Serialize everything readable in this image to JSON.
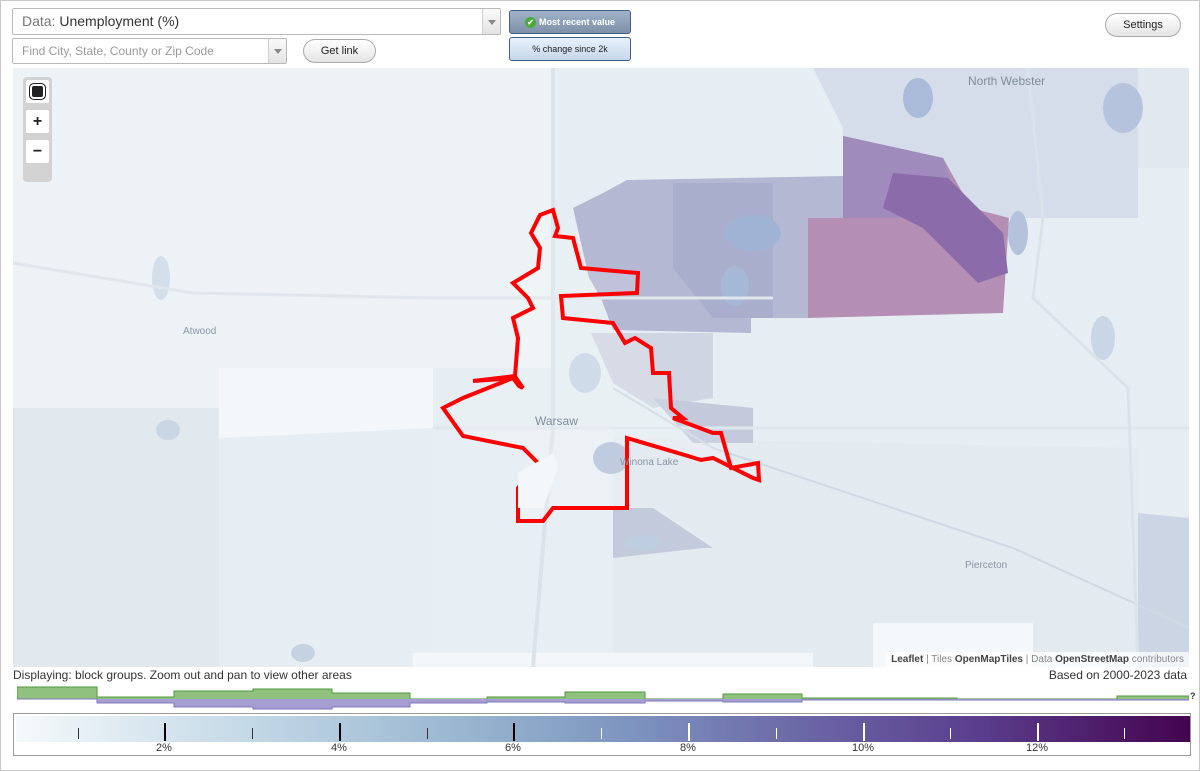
{
  "controls": {
    "data_label": "Data:",
    "data_value": "Unemployment (%)",
    "search_placeholder": "Find City, State, County or Zip Code",
    "get_link": "Get link",
    "mode_recent": "Most recent value",
    "mode_change": "% change since 2k",
    "settings": "Settings"
  },
  "map": {
    "places": {
      "north_webster": "North Webster",
      "atwood": "Atwood",
      "warsaw": "Warsaw",
      "winona_lake": "Winona Lake",
      "pierceton": "Pierceton"
    },
    "attribution": {
      "leaflet": "Leaflet",
      "tiles_prefix": "| Tiles",
      "openmaptiles": "OpenMapTiles",
      "data_prefix": "| Data",
      "osm": "OpenStreetMap",
      "contributors": "contributors"
    },
    "zoom": {
      "fit": "fit-bounds-icon",
      "in": "+",
      "out": "−"
    },
    "colors": {
      "highlight_outline": "#ff0000",
      "scale_low": "#f5f9fb",
      "scale_high": "#45034f"
    }
  },
  "footer": {
    "display_note": "Displaying: block groups. Zoom out and pan to view other areas",
    "data_years": "Based on 2000-2023 data",
    "help": "?"
  },
  "legend": {
    "tick_labels": [
      "2%",
      "4%",
      "6%",
      "8%",
      "10%",
      "12%"
    ]
  }
}
